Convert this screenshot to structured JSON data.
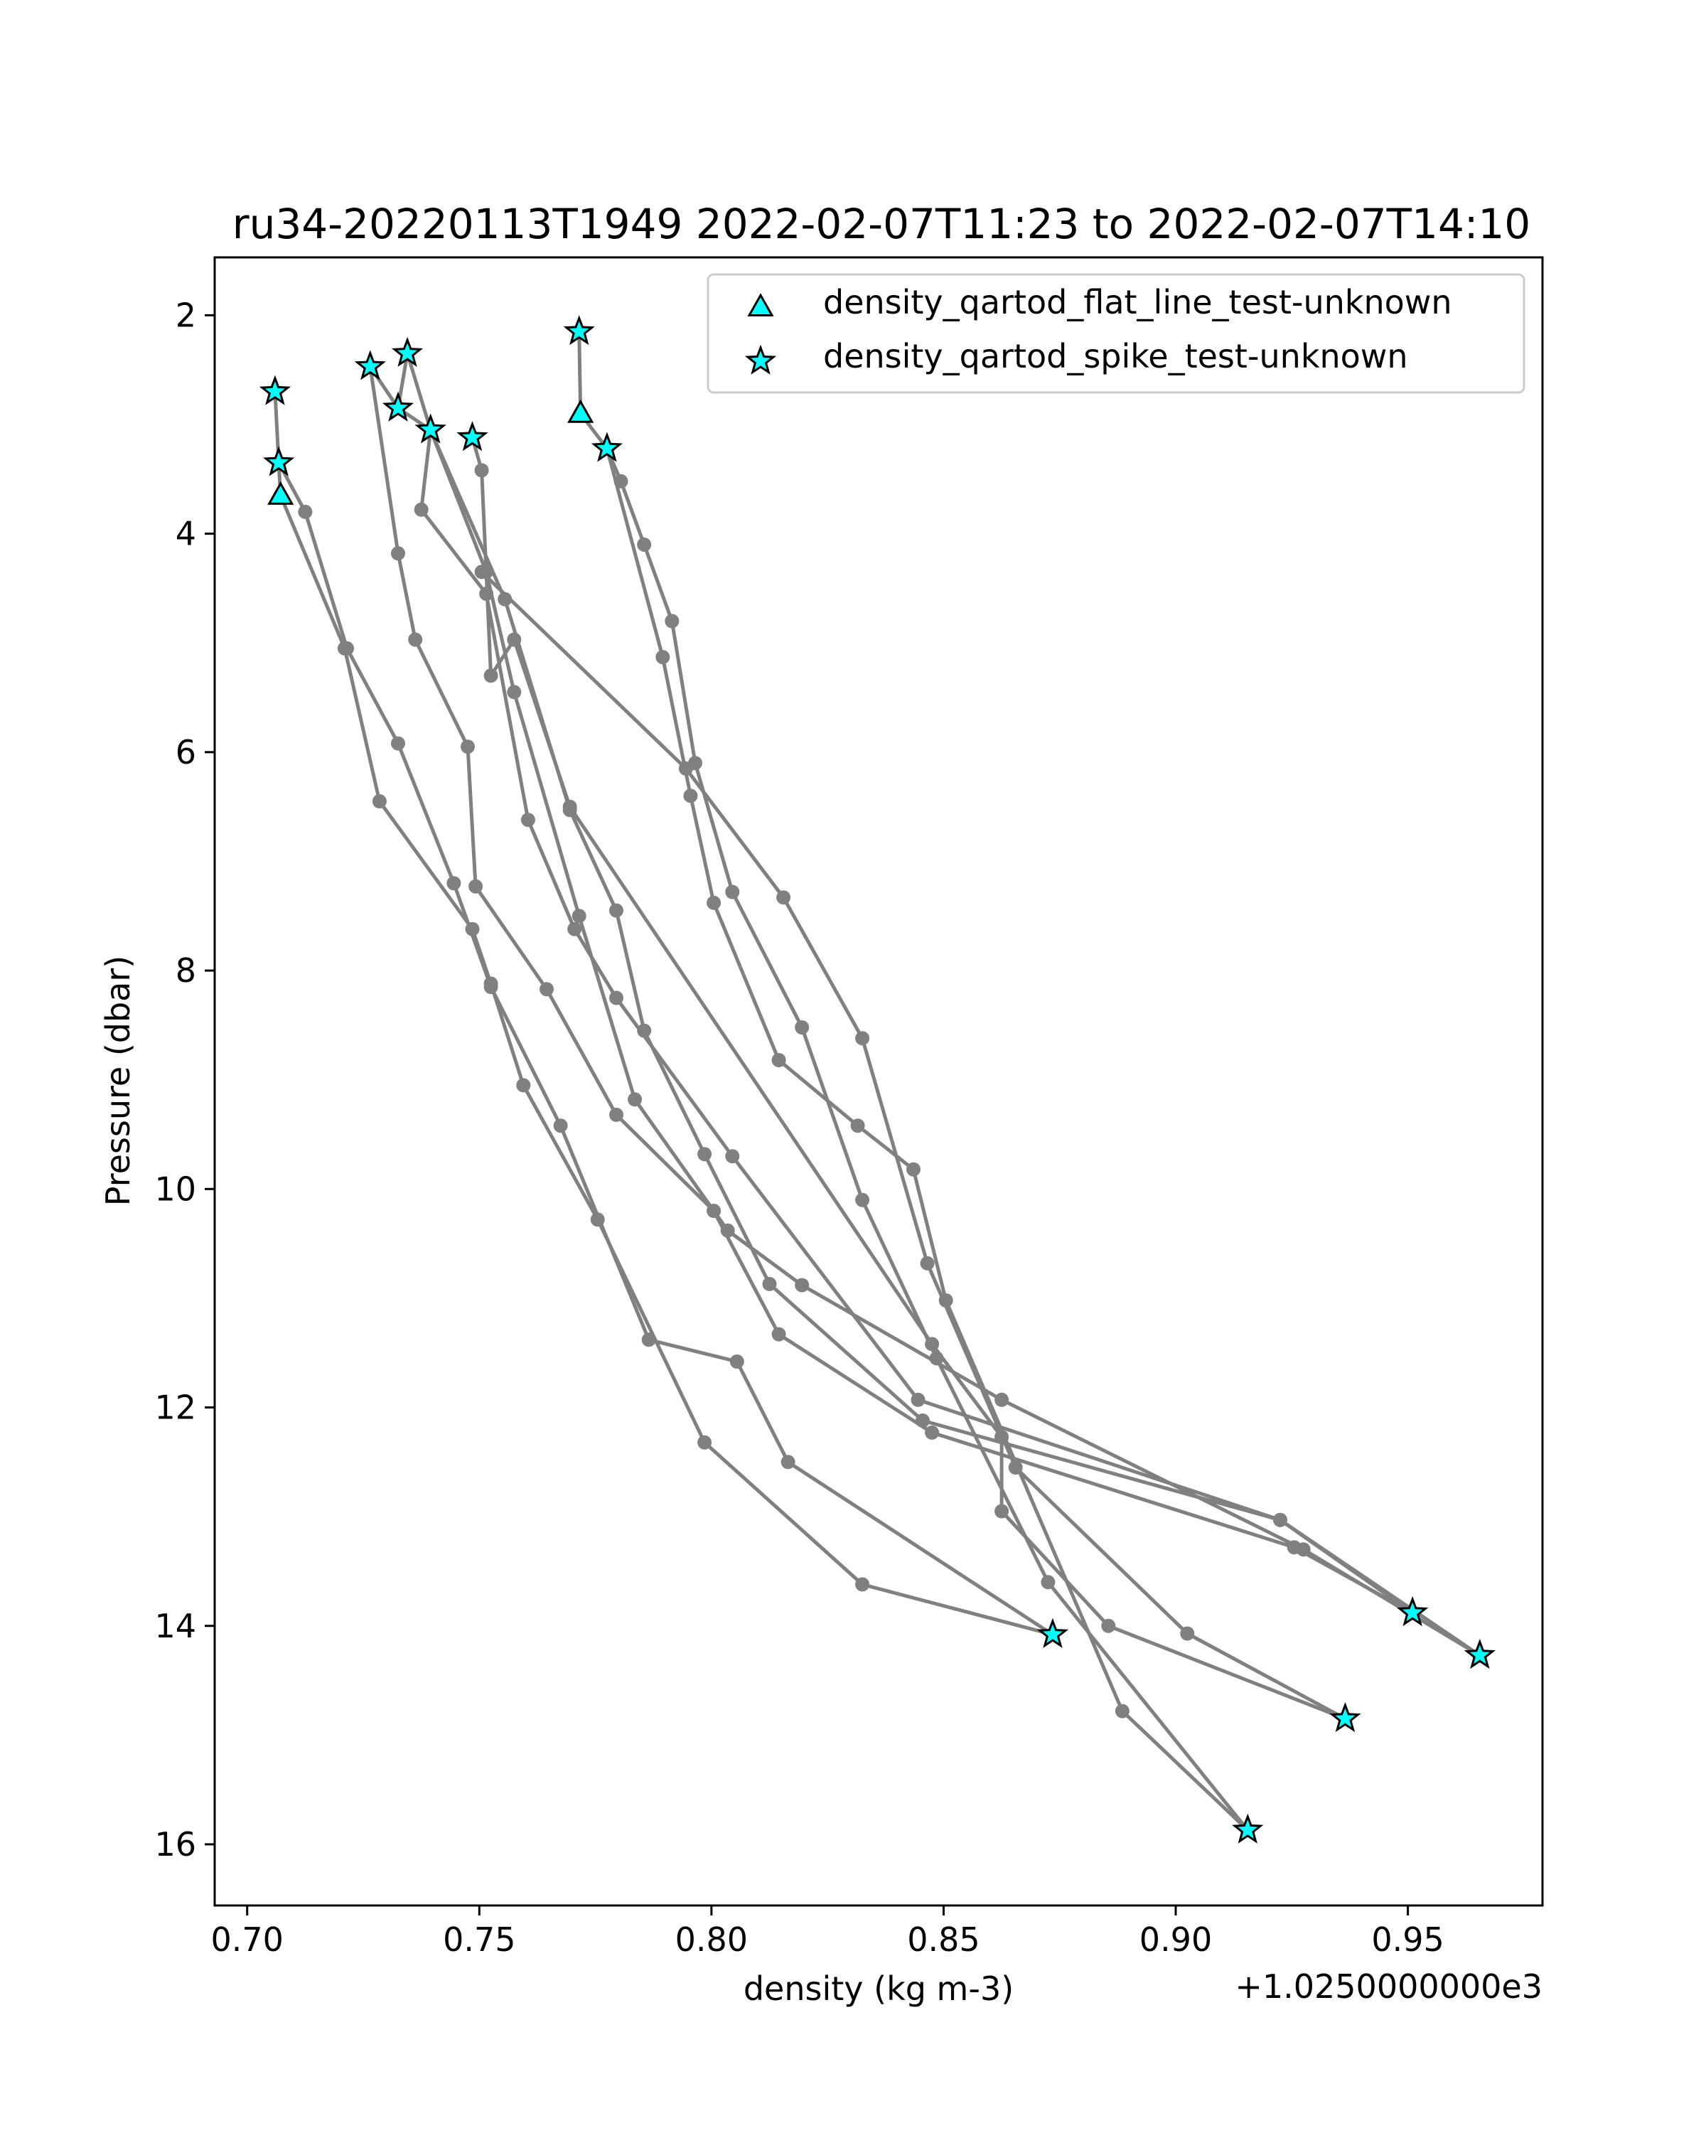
{
  "chart_data": {
    "type": "line",
    "title": "ru34-20220113T1949 2022-02-07T11:23 to 2022-02-07T14:10",
    "xlabel": "density (kg m-3)",
    "ylabel": "Pressure (dbar)",
    "x_offset_label": "+1.0250000000e3",
    "x_offset": 1025.0,
    "xlim": [
      0.693,
      0.979
    ],
    "ylim": [
      16.56,
      1.47
    ],
    "y_inverted": true,
    "grid": false,
    "legend_position": "upper right",
    "line_color": "#808080",
    "marker_color": "#00ffff",
    "x_ticks": [
      0.7,
      0.75,
      0.8,
      0.85,
      0.9,
      0.95
    ],
    "x_tick_labels": [
      "0.70",
      "0.75",
      "0.80",
      "0.85",
      "0.90",
      "0.95"
    ],
    "y_ticks": [
      2,
      4,
      6,
      8,
      10,
      12,
      14,
      16
    ],
    "y_tick_labels": [
      "2",
      "4",
      "6",
      "8",
      "10",
      "12",
      "14",
      "16"
    ],
    "legend": [
      {
        "label": "density_qartod_flat_line_test-unknown",
        "marker": "triangle"
      },
      {
        "label": "density_qartod_spike_test-unknown",
        "marker": "star"
      }
    ],
    "profiles": [
      {
        "points": [
          [
            0.706,
            2.7
          ],
          [
            0.7068,
            3.35
          ],
          [
            0.7125,
            3.8
          ],
          [
            0.7215,
            5.05
          ],
          [
            0.7325,
            5.92
          ],
          [
            0.7445,
            7.2
          ],
          [
            0.7525,
            8.15
          ],
          [
            0.7675,
            9.42
          ],
          [
            0.7865,
            11.38
          ],
          [
            0.8055,
            11.58
          ],
          [
            0.8165,
            12.5
          ],
          [
            0.8735,
            14.08
          ]
        ]
      },
      {
        "points": [
          [
            0.7068,
            3.35
          ],
          [
            0.7072,
            3.65
          ],
          [
            0.721,
            5.05
          ],
          [
            0.7285,
            6.45
          ],
          [
            0.7485,
            7.62
          ],
          [
            0.7525,
            8.12
          ],
          [
            0.7595,
            9.05
          ],
          [
            0.7755,
            10.28
          ],
          [
            0.7985,
            12.32
          ],
          [
            0.8325,
            13.62
          ],
          [
            0.8735,
            14.08
          ]
        ]
      },
      {
        "points": [
          [
            0.7265,
            2.47
          ],
          [
            0.7325,
            4.18
          ],
          [
            0.7362,
            4.97
          ],
          [
            0.7475,
            5.95
          ],
          [
            0.7492,
            7.23
          ],
          [
            0.7645,
            8.17
          ],
          [
            0.7795,
            9.32
          ],
          [
            0.8005,
            10.2
          ],
          [
            0.8145,
            11.33
          ],
          [
            0.8475,
            12.23
          ],
          [
            0.9255,
            13.28
          ],
          [
            0.951,
            13.88
          ]
        ]
      },
      {
        "points": [
          [
            0.7265,
            2.47
          ],
          [
            0.7325,
            2.85
          ],
          [
            0.7395,
            3.05
          ],
          [
            0.7555,
            4.6
          ],
          [
            0.7695,
            6.53
          ],
          [
            0.7795,
            7.45
          ],
          [
            0.7855,
            8.55
          ],
          [
            0.7985,
            9.68
          ],
          [
            0.8125,
            10.87
          ],
          [
            0.8455,
            12.12
          ],
          [
            0.9225,
            13.03
          ],
          [
            0.951,
            13.88
          ]
        ]
      },
      {
        "points": [
          [
            0.7325,
            2.85
          ],
          [
            0.7345,
            2.35
          ],
          [
            0.7395,
            3.05
          ],
          [
            0.7515,
            4.35
          ],
          [
            0.7575,
            5.45
          ],
          [
            0.7715,
            7.5
          ],
          [
            0.7835,
            9.18
          ],
          [
            0.8035,
            10.38
          ],
          [
            0.8195,
            10.88
          ],
          [
            0.8625,
            11.93
          ],
          [
            0.9275,
            13.3
          ],
          [
            0.9655,
            14.27
          ]
        ]
      },
      {
        "points": [
          [
            0.7395,
            3.05
          ],
          [
            0.7375,
            3.78
          ],
          [
            0.7515,
            4.55
          ],
          [
            0.7605,
            6.62
          ],
          [
            0.7705,
            7.62
          ],
          [
            0.7795,
            8.25
          ],
          [
            0.8045,
            9.7
          ],
          [
            0.8445,
            11.93
          ],
          [
            0.9225,
            13.03
          ],
          [
            0.9655,
            14.27
          ]
        ]
      },
      {
        "points": [
          [
            0.7485,
            3.12
          ],
          [
            0.7505,
            3.42
          ],
          [
            0.7525,
            5.3
          ],
          [
            0.7575,
            4.97
          ],
          [
            0.7695,
            6.5
          ],
          [
            0.8475,
            11.42
          ],
          [
            0.8625,
            12.27
          ],
          [
            0.8625,
            12.95
          ],
          [
            0.8855,
            14.0
          ],
          [
            0.9365,
            14.85
          ]
        ]
      },
      {
        "points": [
          [
            0.7505,
            4.35
          ],
          [
            0.7945,
            6.15
          ],
          [
            0.8155,
            7.33
          ],
          [
            0.8325,
            8.62
          ],
          [
            0.8465,
            10.68
          ],
          [
            0.8655,
            12.55
          ],
          [
            0.9025,
            14.07
          ],
          [
            0.9365,
            14.85
          ]
        ]
      },
      {
        "points": [
          [
            0.7715,
            2.15
          ],
          [
            0.7718,
            2.9
          ],
          [
            0.7775,
            3.22
          ],
          [
            0.7805,
            3.52
          ],
          [
            0.7855,
            4.1
          ],
          [
            0.7915,
            4.8
          ],
          [
            0.7965,
            6.1
          ],
          [
            0.8045,
            7.28
          ],
          [
            0.8195,
            8.52
          ],
          [
            0.8325,
            10.1
          ],
          [
            0.8485,
            11.55
          ],
          [
            0.8725,
            13.6
          ],
          [
            0.9155,
            15.87
          ]
        ]
      },
      {
        "points": [
          [
            0.7775,
            3.22
          ],
          [
            0.7895,
            5.13
          ],
          [
            0.7955,
            6.4
          ],
          [
            0.8005,
            7.38
          ],
          [
            0.8145,
            8.82
          ],
          [
            0.8315,
            9.42
          ],
          [
            0.8435,
            9.82
          ],
          [
            0.8505,
            11.02
          ],
          [
            0.8885,
            14.78
          ],
          [
            0.9155,
            15.87
          ]
        ]
      }
    ],
    "flat_line_flags": [
      [
        0.7718,
        2.9
      ],
      [
        0.7072,
        3.65
      ]
    ],
    "spike_flags": [
      [
        0.7715,
        2.15
      ],
      [
        0.7345,
        2.35
      ],
      [
        0.7265,
        2.47
      ],
      [
        0.706,
        2.7
      ],
      [
        0.7325,
        2.85
      ],
      [
        0.7395,
        3.05
      ],
      [
        0.7485,
        3.12
      ],
      [
        0.7775,
        3.22
      ],
      [
        0.7068,
        3.35
      ],
      [
        0.951,
        13.88
      ],
      [
        0.8735,
        14.08
      ],
      [
        0.9655,
        14.27
      ],
      [
        0.9365,
        14.85
      ],
      [
        0.9155,
        15.87
      ]
    ]
  }
}
